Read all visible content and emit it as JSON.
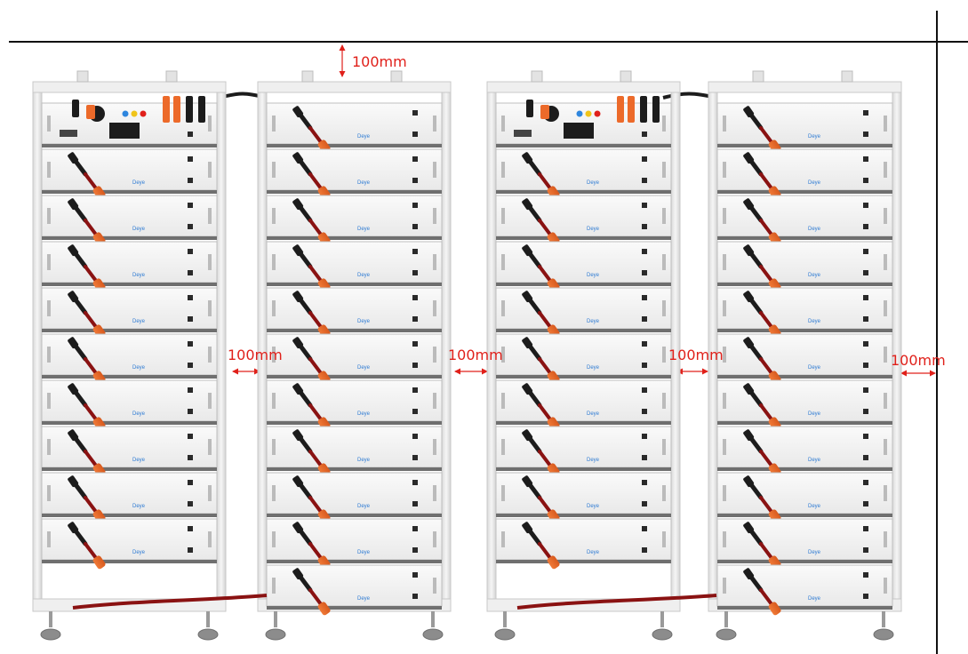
{
  "dimensions": {
    "top_clearance": "100mm",
    "rack_gap_1": "100mm",
    "rack_gap_2": "100mm",
    "rack_gap_3": "100mm",
    "wall_clearance": "100mm"
  },
  "brand_label": "Deye",
  "colors": {
    "dimension": "#e0201a",
    "cable_orange": "#ec6a2a",
    "cable_black": "#1c1c1c",
    "cable_red": "#8a1212",
    "rack_frame": "#e8e8e8",
    "module_face": "#f4f4f4",
    "brand_blue": "#2e7bd3"
  },
  "racks": [
    {
      "id": "rack-1",
      "type": "with-controller",
      "battery_modules": 9
    },
    {
      "id": "rack-2",
      "type": "battery-only",
      "battery_modules": 11
    },
    {
      "id": "rack-3",
      "type": "with-controller",
      "battery_modules": 9
    },
    {
      "id": "rack-4",
      "type": "battery-only",
      "battery_modules": 11
    }
  ]
}
